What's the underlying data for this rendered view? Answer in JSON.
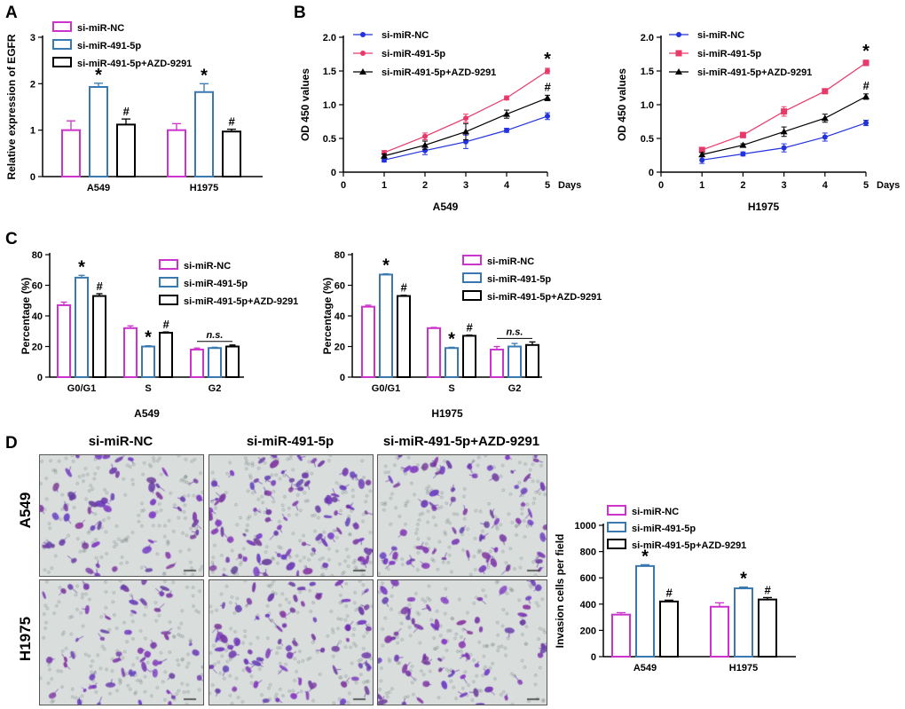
{
  "panels": {
    "A": "A",
    "B": "B",
    "C": "C",
    "D": "D"
  },
  "colors": {
    "nc": "#cc33cc",
    "mir": "#3a78b0",
    "azd": "#000000",
    "nc_line": "#2233dd",
    "mir_line": "#e83a6a"
  },
  "chart_data": [
    {
      "id": "A",
      "type": "bar",
      "ylabel": "Relative expression of EGFR",
      "ylim": [
        0,
        3
      ],
      "yticks": [
        0,
        1,
        2,
        3
      ],
      "categories": [
        "A549",
        "H1975"
      ],
      "series": [
        {
          "name": "si-miR-NC",
          "values": [
            1.0,
            1.0
          ],
          "errors": [
            0.2,
            0.14
          ]
        },
        {
          "name": "si-miR-491-5p",
          "values": [
            1.93,
            1.82
          ],
          "errors": [
            0.08,
            0.18
          ]
        },
        {
          "name": "si-miR-491-5p+AZD-9291",
          "values": [
            1.12,
            0.97
          ],
          "errors": [
            0.12,
            0.05
          ]
        }
      ],
      "annotations": [
        [
          "",
          "*",
          "#"
        ],
        [
          "",
          "*",
          "#"
        ]
      ]
    },
    {
      "id": "B1",
      "type": "line",
      "ylabel": "OD 450 values",
      "xlabel": "A549",
      "xunit": "Days",
      "xlim": [
        0,
        5
      ],
      "xticks": [
        0,
        1,
        2,
        3,
        4,
        5
      ],
      "ylim": [
        0,
        2.0
      ],
      "yticks": [
        "0",
        "0.5",
        "1.0",
        "1.5",
        "2.0"
      ],
      "x": [
        1,
        2,
        3,
        4,
        5
      ],
      "series": [
        {
          "name": "si-miR-NC",
          "marker": "circle",
          "values": [
            0.18,
            0.32,
            0.45,
            0.62,
            0.83
          ],
          "errors": [
            0.03,
            0.06,
            0.1,
            0.03,
            0.05
          ]
        },
        {
          "name": "si-miR-491-5p",
          "marker": "circle",
          "values": [
            0.29,
            0.53,
            0.8,
            1.1,
            1.5
          ],
          "errors": [
            0.03,
            0.05,
            0.06,
            0.03,
            0.04
          ]
        },
        {
          "name": "si-miR-491-5p+AZD-9291",
          "marker": "triangle",
          "values": [
            0.24,
            0.4,
            0.6,
            0.86,
            1.1
          ],
          "errors": [
            0.03,
            0.06,
            0.12,
            0.06,
            0.04
          ]
        }
      ],
      "annotations": [
        {
          "text": "*",
          "series": 1
        },
        {
          "text": "#",
          "series": 2
        }
      ]
    },
    {
      "id": "B2",
      "type": "line",
      "ylabel": "OD 450 values",
      "xlabel": "H1975",
      "xunit": "Days",
      "xlim": [
        0,
        5
      ],
      "xticks": [
        0,
        1,
        2,
        3,
        4,
        5
      ],
      "ylim": [
        0,
        2.0
      ],
      "yticks": [
        "0",
        "0.5",
        "1.0",
        "1.5",
        "2.0"
      ],
      "x": [
        1,
        2,
        3,
        4,
        5
      ],
      "series": [
        {
          "name": "si-miR-NC",
          "marker": "circle",
          "values": [
            0.18,
            0.27,
            0.36,
            0.52,
            0.73
          ],
          "errors": [
            0.05,
            0.03,
            0.06,
            0.06,
            0.04
          ]
        },
        {
          "name": "si-miR-491-5p",
          "marker": "square",
          "values": [
            0.33,
            0.55,
            0.9,
            1.2,
            1.62
          ],
          "errors": [
            0.03,
            0.04,
            0.07,
            0.02,
            0.04
          ]
        },
        {
          "name": "si-miR-491-5p+AZD-9291",
          "marker": "triangle",
          "values": [
            0.26,
            0.4,
            0.6,
            0.8,
            1.12
          ],
          "errors": [
            0.03,
            0.02,
            0.07,
            0.06,
            0.04
          ]
        }
      ],
      "annotations": [
        {
          "text": "*",
          "series": 1
        },
        {
          "text": "#",
          "series": 2
        }
      ]
    },
    {
      "id": "C1",
      "type": "bar",
      "ylabel": "Percentage (%)",
      "xlabel": "A549",
      "ylim": [
        0,
        80
      ],
      "yticks": [
        0,
        20,
        40,
        60,
        80
      ],
      "categories": [
        "G0/G1",
        "S",
        "G2"
      ],
      "series": [
        {
          "name": "si-miR-NC",
          "values": [
            47,
            32,
            18
          ],
          "errors": [
            2,
            1.5,
            1
          ]
        },
        {
          "name": "si-miR-491-5p",
          "values": [
            65,
            20,
            19
          ],
          "errors": [
            1.5,
            0.5,
            0.5
          ]
        },
        {
          "name": "si-miR-491-5p+AZD-9291",
          "values": [
            53,
            29,
            20
          ],
          "errors": [
            1.5,
            0.5,
            1
          ]
        }
      ],
      "annotations": [
        [
          "",
          "*",
          "#"
        ],
        [
          "",
          "*",
          "#"
        ],
        [
          "",
          "",
          ""
        ]
      ],
      "ns_label": "n.s."
    },
    {
      "id": "C2",
      "type": "bar",
      "ylabel": "Percentage (%)",
      "xlabel": "H1975",
      "ylim": [
        0,
        80
      ],
      "yticks": [
        0,
        20,
        40,
        60,
        80
      ],
      "categories": [
        "G0/G1",
        "S",
        "G2"
      ],
      "series": [
        {
          "name": "si-miR-NC",
          "values": [
            46,
            32,
            18
          ],
          "errors": [
            1,
            0.5,
            2
          ]
        },
        {
          "name": "si-miR-491-5p",
          "values": [
            67,
            19,
            20
          ],
          "errors": [
            0.5,
            0.5,
            2
          ]
        },
        {
          "name": "si-miR-491-5p+AZD-9291",
          "values": [
            53,
            27,
            21
          ],
          "errors": [
            0.5,
            0.5,
            2
          ]
        }
      ],
      "annotations": [
        [
          "",
          "*",
          "#"
        ],
        [
          "",
          "*",
          "#"
        ],
        [
          "",
          "",
          ""
        ]
      ],
      "ns_label": "n.s."
    },
    {
      "id": "D",
      "type": "bar",
      "ylabel": "Invasion cells per field",
      "ylim": [
        0,
        1000
      ],
      "yticks": [
        0,
        200,
        400,
        600,
        800,
        1000
      ],
      "categories": [
        "A549",
        "H1975"
      ],
      "series": [
        {
          "name": "si-miR-NC",
          "values": [
            320,
            380
          ],
          "errors": [
            15,
            30
          ]
        },
        {
          "name": "si-miR-491-5p",
          "values": [
            690,
            520
          ],
          "errors": [
            10,
            10
          ]
        },
        {
          "name": "si-miR-491-5p+AZD-9291",
          "values": [
            420,
            435
          ],
          "errors": [
            10,
            15
          ]
        }
      ],
      "annotations": [
        [
          "",
          "*",
          "#"
        ],
        [
          "",
          "*",
          "#"
        ]
      ]
    }
  ],
  "micrographs": {
    "columns": [
      "si-miR-NC",
      "si-miR-491-5p",
      "si-miR-491-5p+AZD-9291"
    ],
    "rows": [
      "A549",
      "H1975"
    ],
    "density": [
      [
        0.5,
        1.0,
        0.7
      ],
      [
        0.5,
        0.75,
        0.6
      ]
    ]
  }
}
